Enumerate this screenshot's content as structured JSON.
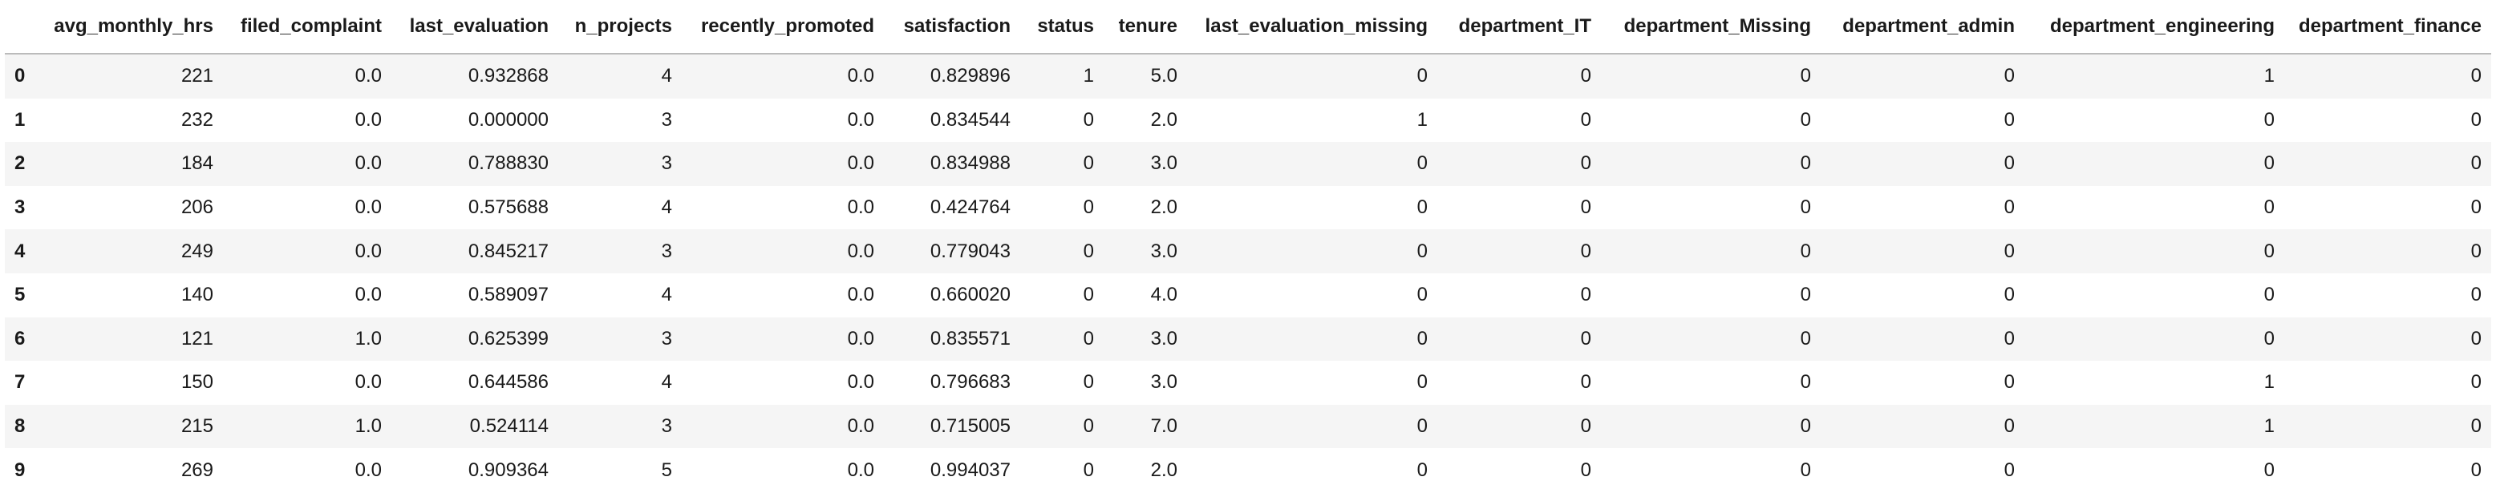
{
  "table": {
    "columns": [
      "avg_monthly_hrs",
      "filed_complaint",
      "last_evaluation",
      "n_projects",
      "recently_promoted",
      "satisfaction",
      "status",
      "tenure",
      "last_evaluation_missing",
      "department_IT",
      "department_Missing",
      "department_admin",
      "department_engineering",
      "department_finance"
    ],
    "rows": [
      {
        "index": "0",
        "cells": [
          "221",
          "0.0",
          "0.932868",
          "4",
          "0.0",
          "0.829896",
          "1",
          "5.0",
          "0",
          "0",
          "0",
          "0",
          "1",
          "0"
        ]
      },
      {
        "index": "1",
        "cells": [
          "232",
          "0.0",
          "0.000000",
          "3",
          "0.0",
          "0.834544",
          "0",
          "2.0",
          "1",
          "0",
          "0",
          "0",
          "0",
          "0"
        ]
      },
      {
        "index": "2",
        "cells": [
          "184",
          "0.0",
          "0.788830",
          "3",
          "0.0",
          "0.834988",
          "0",
          "3.0",
          "0",
          "0",
          "0",
          "0",
          "0",
          "0"
        ]
      },
      {
        "index": "3",
        "cells": [
          "206",
          "0.0",
          "0.575688",
          "4",
          "0.0",
          "0.424764",
          "0",
          "2.0",
          "0",
          "0",
          "0",
          "0",
          "0",
          "0"
        ]
      },
      {
        "index": "4",
        "cells": [
          "249",
          "0.0",
          "0.845217",
          "3",
          "0.0",
          "0.779043",
          "0",
          "3.0",
          "0",
          "0",
          "0",
          "0",
          "0",
          "0"
        ]
      },
      {
        "index": "5",
        "cells": [
          "140",
          "0.0",
          "0.589097",
          "4",
          "0.0",
          "0.660020",
          "0",
          "4.0",
          "0",
          "0",
          "0",
          "0",
          "0",
          "0"
        ]
      },
      {
        "index": "6",
        "cells": [
          "121",
          "1.0",
          "0.625399",
          "3",
          "0.0",
          "0.835571",
          "0",
          "3.0",
          "0",
          "0",
          "0",
          "0",
          "0",
          "0"
        ]
      },
      {
        "index": "7",
        "cells": [
          "150",
          "0.0",
          "0.644586",
          "4",
          "0.0",
          "0.796683",
          "0",
          "3.0",
          "0",
          "0",
          "0",
          "0",
          "1",
          "0"
        ]
      },
      {
        "index": "8",
        "cells": [
          "215",
          "1.0",
          "0.524114",
          "3",
          "0.0",
          "0.715005",
          "0",
          "7.0",
          "0",
          "0",
          "0",
          "0",
          "1",
          "0"
        ]
      },
      {
        "index": "9",
        "cells": [
          "269",
          "0.0",
          "0.909364",
          "5",
          "0.0",
          "0.994037",
          "0",
          "2.0",
          "0",
          "0",
          "0",
          "0",
          "0",
          "0"
        ]
      }
    ]
  }
}
